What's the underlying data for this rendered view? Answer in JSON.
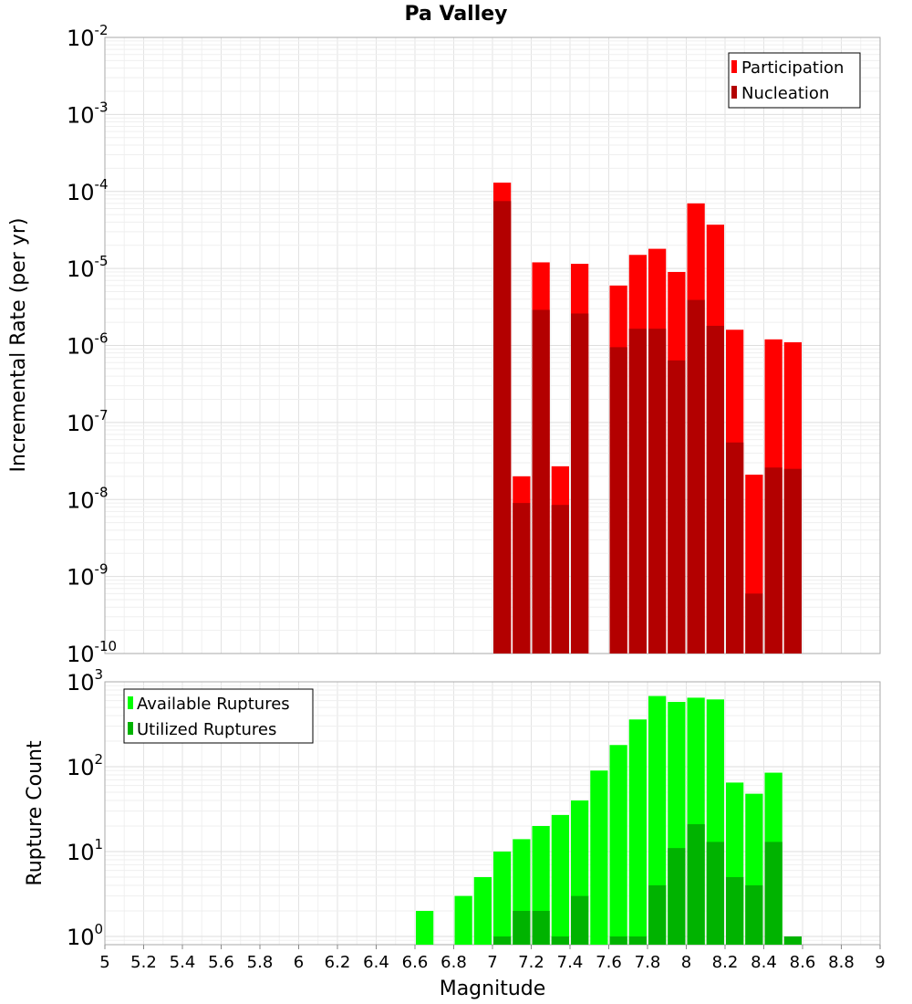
{
  "chart_data": [
    {
      "type": "bar",
      "title": "Pa Valley",
      "ylabel": "Incremental Rate (per yr)",
      "xlim": [
        5,
        9
      ],
      "ylim": [
        1e-10,
        0.01
      ],
      "yscale": "log",
      "y_ticks": [
        {
          "base": "10",
          "exp": "-10"
        },
        {
          "base": "10",
          "exp": "-9"
        },
        {
          "base": "10",
          "exp": "-8"
        },
        {
          "base": "10",
          "exp": "-7"
        },
        {
          "base": "10",
          "exp": "-6"
        },
        {
          "base": "10",
          "exp": "-5"
        },
        {
          "base": "10",
          "exp": "-4"
        },
        {
          "base": "10",
          "exp": "-3"
        },
        {
          "base": "10",
          "exp": "-2"
        }
      ],
      "grid": true,
      "legend_position": "top-right",
      "bar_width": 0.1,
      "x": [
        7.05,
        7.15,
        7.25,
        7.35,
        7.45,
        7.55,
        7.65,
        7.75,
        7.85,
        7.95,
        8.05,
        8.15,
        8.25,
        8.35,
        8.45,
        8.55
      ],
      "series": [
        {
          "name": "Participation",
          "color": "#ff0000",
          "values": [
            0.00013,
            2e-08,
            1.2e-05,
            2.7e-08,
            1.15e-05,
            null,
            6e-06,
            1.5e-05,
            1.8e-05,
            9e-06,
            7e-05,
            3.7e-05,
            1.6e-06,
            2.1e-08,
            1.2e-06,
            1.1e-06
          ]
        },
        {
          "name": "Nucleation",
          "color": "#b30000",
          "values": [
            7.5e-05,
            9e-09,
            2.9e-06,
            8.5e-09,
            2.6e-06,
            null,
            9.5e-07,
            1.65e-06,
            1.65e-06,
            6.4e-07,
            3.9e-06,
            1.8e-06,
            5.5e-08,
            6e-10,
            2.6e-08,
            2.5e-08
          ]
        }
      ]
    },
    {
      "type": "bar",
      "xlabel": "Magnitude",
      "ylabel": "Rupture Count",
      "xlim": [
        5,
        9
      ],
      "ylim": [
        0.8,
        1000
      ],
      "yscale": "log",
      "y_ticks": [
        {
          "base": "10",
          "exp": "0"
        },
        {
          "base": "10",
          "exp": "1"
        },
        {
          "base": "10",
          "exp": "2"
        },
        {
          "base": "10",
          "exp": "3"
        }
      ],
      "x_ticks": [
        "5",
        "5.2",
        "5.4",
        "5.6",
        "5.8",
        "6",
        "6.2",
        "6.4",
        "6.6",
        "6.8",
        "7",
        "7.2",
        "7.4",
        "7.6",
        "7.8",
        "8",
        "8.2",
        "8.4",
        "8.6",
        "8.8",
        "9"
      ],
      "grid": true,
      "legend_position": "top-left",
      "bar_width": 0.1,
      "x": [
        6.65,
        6.85,
        6.95,
        7.05,
        7.15,
        7.25,
        7.35,
        7.45,
        7.55,
        7.65,
        7.75,
        7.85,
        7.95,
        8.05,
        8.15,
        8.25,
        8.35,
        8.45,
        8.55
      ],
      "series": [
        {
          "name": "Available Ruptures",
          "color": "#00ff00",
          "values": [
            2,
            3,
            5,
            10,
            14,
            20,
            27,
            40,
            90,
            180,
            360,
            680,
            580,
            650,
            620,
            65,
            48,
            85,
            null
          ]
        },
        {
          "name": "Utilized Ruptures",
          "color": "#00b300",
          "values": [
            null,
            null,
            null,
            1,
            2,
            2,
            1,
            3,
            null,
            1,
            1,
            4,
            11,
            21,
            13,
            5,
            4,
            13,
            1
          ]
        }
      ]
    }
  ]
}
